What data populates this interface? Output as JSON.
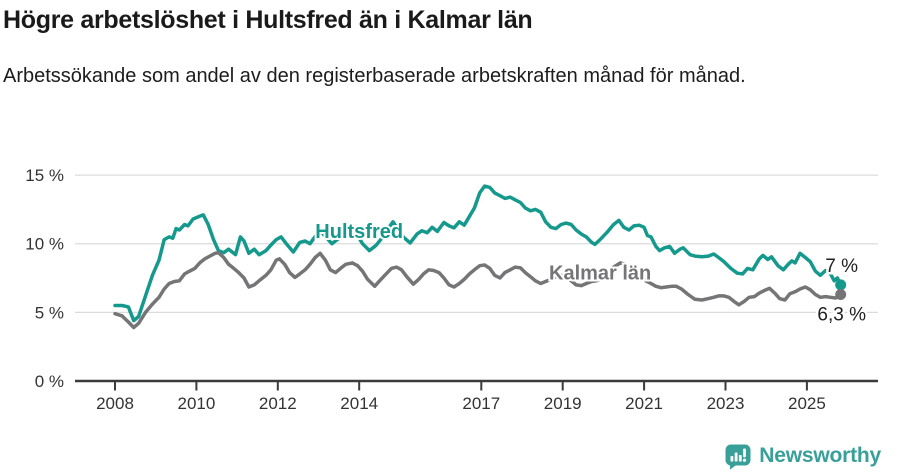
{
  "header": {
    "title": "Högre arbetslöshet i Hultsfred än i Kalmar län",
    "subtitle": "Arbetssökande som andel av den registerbaserade arbetskraften månad för månad."
  },
  "chart_data": {
    "type": "line",
    "unit": "%",
    "grid": "horizontal",
    "x_axis": {
      "range": [
        2008,
        2026.2
      ],
      "ticks": [
        {
          "label": "2008",
          "value": 2008
        },
        {
          "label": "2010",
          "value": 2010
        },
        {
          "label": "2012",
          "value": 2012
        },
        {
          "label": "2014",
          "value": 2014
        },
        {
          "label": "2017",
          "value": 2017
        },
        {
          "label": "2019",
          "value": 2019
        },
        {
          "label": "2021",
          "value": 2021
        },
        {
          "label": "2023",
          "value": 2023
        },
        {
          "label": "2025",
          "value": 2025
        }
      ]
    },
    "y_axis": {
      "range": [
        0,
        15.5
      ],
      "ticks": [
        {
          "label": "0 %",
          "value": 0
        },
        {
          "label": "5 %",
          "value": 5
        },
        {
          "label": "10 %",
          "value": 10
        },
        {
          "label": "15 %",
          "value": 15
        }
      ]
    },
    "series": [
      {
        "name": "Hultsfred",
        "color": "#14998c",
        "end_label": "7 %",
        "end_label_position": "above",
        "label_pos": [
          2014.0,
          10.92
        ],
        "points": [
          [
            2008.0,
            5.5
          ],
          [
            2008.17,
            5.5
          ],
          [
            2008.33,
            5.4
          ],
          [
            2008.46,
            4.4
          ],
          [
            2008.58,
            4.7
          ],
          [
            2008.75,
            6.2
          ],
          [
            2008.92,
            7.7
          ],
          [
            2009.08,
            8.8
          ],
          [
            2009.21,
            10.3
          ],
          [
            2009.33,
            10.5
          ],
          [
            2009.42,
            10.4
          ],
          [
            2009.5,
            11.1
          ],
          [
            2009.58,
            11.0
          ],
          [
            2009.71,
            11.4
          ],
          [
            2009.79,
            11.3
          ],
          [
            2009.92,
            11.8
          ],
          [
            2010.08,
            12.0
          ],
          [
            2010.17,
            12.1
          ],
          [
            2010.29,
            11.4
          ],
          [
            2010.42,
            10.3
          ],
          [
            2010.54,
            9.5
          ],
          [
            2010.67,
            9.35
          ],
          [
            2010.79,
            9.6
          ],
          [
            2010.88,
            9.4
          ],
          [
            2010.96,
            9.2
          ],
          [
            2011.08,
            10.5
          ],
          [
            2011.17,
            10.2
          ],
          [
            2011.29,
            9.3
          ],
          [
            2011.42,
            9.6
          ],
          [
            2011.54,
            9.2
          ],
          [
            2011.71,
            9.5
          ],
          [
            2011.83,
            9.9
          ],
          [
            2011.96,
            10.3
          ],
          [
            2012.08,
            10.5
          ],
          [
            2012.21,
            10.0
          ],
          [
            2012.38,
            9.4
          ],
          [
            2012.54,
            10.1
          ],
          [
            2012.67,
            10.2
          ],
          [
            2012.79,
            10.0
          ],
          [
            2012.96,
            10.7
          ],
          [
            2013.08,
            10.8
          ],
          [
            2013.21,
            10.4
          ],
          [
            2013.33,
            10.0
          ],
          [
            2013.46,
            10.3
          ],
          [
            2013.63,
            10.7
          ],
          [
            2013.75,
            11.0
          ],
          [
            2013.92,
            10.8
          ],
          [
            2014.08,
            10.0
          ],
          [
            2014.25,
            9.5
          ],
          [
            2014.42,
            9.9
          ],
          [
            2014.58,
            10.5
          ],
          [
            2014.71,
            11.1
          ],
          [
            2014.83,
            11.6
          ],
          [
            2014.96,
            11.0
          ],
          [
            2015.08,
            10.5
          ],
          [
            2015.25,
            10.05
          ],
          [
            2015.42,
            10.7
          ],
          [
            2015.54,
            10.95
          ],
          [
            2015.67,
            10.8
          ],
          [
            2015.79,
            11.2
          ],
          [
            2015.92,
            10.9
          ],
          [
            2016.08,
            11.55
          ],
          [
            2016.21,
            11.3
          ],
          [
            2016.33,
            11.15
          ],
          [
            2016.46,
            11.6
          ],
          [
            2016.58,
            11.35
          ],
          [
            2016.71,
            12.0
          ],
          [
            2016.83,
            12.6
          ],
          [
            2016.96,
            13.7
          ],
          [
            2017.08,
            14.2
          ],
          [
            2017.21,
            14.1
          ],
          [
            2017.33,
            13.7
          ],
          [
            2017.46,
            13.5
          ],
          [
            2017.58,
            13.3
          ],
          [
            2017.71,
            13.4
          ],
          [
            2017.83,
            13.2
          ],
          [
            2017.96,
            13.0
          ],
          [
            2018.08,
            12.6
          ],
          [
            2018.21,
            12.4
          ],
          [
            2018.33,
            12.5
          ],
          [
            2018.46,
            12.3
          ],
          [
            2018.58,
            11.6
          ],
          [
            2018.71,
            11.2
          ],
          [
            2018.83,
            11.1
          ],
          [
            2018.96,
            11.4
          ],
          [
            2019.08,
            11.5
          ],
          [
            2019.21,
            11.4
          ],
          [
            2019.33,
            11.0
          ],
          [
            2019.46,
            10.7
          ],
          [
            2019.58,
            10.5
          ],
          [
            2019.71,
            10.1
          ],
          [
            2019.79,
            9.95
          ],
          [
            2019.92,
            10.3
          ],
          [
            2020.08,
            10.8
          ],
          [
            2020.25,
            11.4
          ],
          [
            2020.38,
            11.7
          ],
          [
            2020.5,
            11.2
          ],
          [
            2020.63,
            11.0
          ],
          [
            2020.75,
            11.3
          ],
          [
            2020.88,
            11.35
          ],
          [
            2021.0,
            11.2
          ],
          [
            2021.08,
            10.6
          ],
          [
            2021.17,
            10.5
          ],
          [
            2021.29,
            9.8
          ],
          [
            2021.38,
            9.5
          ],
          [
            2021.5,
            9.7
          ],
          [
            2021.63,
            9.8
          ],
          [
            2021.75,
            9.3
          ],
          [
            2021.88,
            9.6
          ],
          [
            2021.96,
            9.7
          ],
          [
            2022.13,
            9.2
          ],
          [
            2022.25,
            9.1
          ],
          [
            2022.42,
            9.05
          ],
          [
            2022.58,
            9.1
          ],
          [
            2022.71,
            9.25
          ],
          [
            2022.83,
            9.0
          ],
          [
            2022.96,
            8.7
          ],
          [
            2023.13,
            8.2
          ],
          [
            2023.29,
            7.85
          ],
          [
            2023.42,
            7.8
          ],
          [
            2023.54,
            8.2
          ],
          [
            2023.67,
            8.1
          ],
          [
            2023.83,
            8.9
          ],
          [
            2023.92,
            9.15
          ],
          [
            2024.04,
            8.85
          ],
          [
            2024.13,
            9.05
          ],
          [
            2024.29,
            8.4
          ],
          [
            2024.42,
            8.1
          ],
          [
            2024.54,
            8.5
          ],
          [
            2024.63,
            8.75
          ],
          [
            2024.71,
            8.6
          ],
          [
            2024.83,
            9.3
          ],
          [
            2024.96,
            9.0
          ],
          [
            2025.08,
            8.7
          ],
          [
            2025.21,
            8.0
          ],
          [
            2025.33,
            7.7
          ],
          [
            2025.46,
            8.05
          ],
          [
            2025.58,
            7.8
          ],
          [
            2025.67,
            7.3
          ],
          [
            2025.75,
            7.5
          ],
          [
            2025.83,
            7.0
          ]
        ]
      },
      {
        "name": "Kalmar län",
        "color": "#757578",
        "end_label": "6,3 %",
        "end_label_position": "below",
        "label_pos": [
          2019.92,
          7.9
        ],
        "points": [
          [
            2008.0,
            4.9
          ],
          [
            2008.17,
            4.75
          ],
          [
            2008.33,
            4.3
          ],
          [
            2008.46,
            3.9
          ],
          [
            2008.58,
            4.2
          ],
          [
            2008.75,
            5.0
          ],
          [
            2008.92,
            5.6
          ],
          [
            2009.08,
            6.1
          ],
          [
            2009.21,
            6.7
          ],
          [
            2009.33,
            7.1
          ],
          [
            2009.46,
            7.25
          ],
          [
            2009.58,
            7.3
          ],
          [
            2009.71,
            7.8
          ],
          [
            2009.83,
            8.0
          ],
          [
            2009.96,
            8.2
          ],
          [
            2010.08,
            8.6
          ],
          [
            2010.21,
            8.9
          ],
          [
            2010.33,
            9.1
          ],
          [
            2010.46,
            9.3
          ],
          [
            2010.54,
            9.35
          ],
          [
            2010.67,
            9.0
          ],
          [
            2010.79,
            8.5
          ],
          [
            2010.92,
            8.2
          ],
          [
            2011.04,
            7.9
          ],
          [
            2011.17,
            7.5
          ],
          [
            2011.29,
            6.85
          ],
          [
            2011.42,
            7.0
          ],
          [
            2011.54,
            7.3
          ],
          [
            2011.71,
            7.7
          ],
          [
            2011.83,
            8.1
          ],
          [
            2011.96,
            8.8
          ],
          [
            2012.04,
            8.9
          ],
          [
            2012.17,
            8.5
          ],
          [
            2012.29,
            7.9
          ],
          [
            2012.42,
            7.55
          ],
          [
            2012.54,
            7.8
          ],
          [
            2012.67,
            8.1
          ],
          [
            2012.79,
            8.5
          ],
          [
            2012.92,
            9.0
          ],
          [
            2013.04,
            9.3
          ],
          [
            2013.17,
            8.8
          ],
          [
            2013.29,
            8.1
          ],
          [
            2013.42,
            7.9
          ],
          [
            2013.54,
            8.2
          ],
          [
            2013.67,
            8.5
          ],
          [
            2013.83,
            8.6
          ],
          [
            2013.96,
            8.4
          ],
          [
            2014.08,
            8.0
          ],
          [
            2014.21,
            7.4
          ],
          [
            2014.38,
            6.9
          ],
          [
            2014.5,
            7.3
          ],
          [
            2014.63,
            7.7
          ],
          [
            2014.79,
            8.2
          ],
          [
            2014.92,
            8.3
          ],
          [
            2015.04,
            8.1
          ],
          [
            2015.17,
            7.6
          ],
          [
            2015.33,
            7.05
          ],
          [
            2015.46,
            7.4
          ],
          [
            2015.58,
            7.8
          ],
          [
            2015.71,
            8.1
          ],
          [
            2015.83,
            8.05
          ],
          [
            2015.96,
            7.9
          ],
          [
            2016.08,
            7.5
          ],
          [
            2016.21,
            7.0
          ],
          [
            2016.33,
            6.85
          ],
          [
            2016.46,
            7.1
          ],
          [
            2016.58,
            7.4
          ],
          [
            2016.71,
            7.8
          ],
          [
            2016.83,
            8.1
          ],
          [
            2016.96,
            8.4
          ],
          [
            2017.08,
            8.45
          ],
          [
            2017.21,
            8.2
          ],
          [
            2017.33,
            7.7
          ],
          [
            2017.46,
            7.5
          ],
          [
            2017.58,
            7.9
          ],
          [
            2017.71,
            8.1
          ],
          [
            2017.83,
            8.3
          ],
          [
            2017.96,
            8.25
          ],
          [
            2018.08,
            7.9
          ],
          [
            2018.21,
            7.6
          ],
          [
            2018.33,
            7.3
          ],
          [
            2018.46,
            7.1
          ],
          [
            2018.58,
            7.25
          ],
          [
            2018.71,
            7.4
          ],
          [
            2018.83,
            7.6
          ],
          [
            2018.96,
            7.7
          ],
          [
            2019.08,
            7.6
          ],
          [
            2019.21,
            7.3
          ],
          [
            2019.33,
            7.0
          ],
          [
            2019.46,
            6.95
          ],
          [
            2019.58,
            7.1
          ],
          [
            2019.71,
            7.25
          ],
          [
            2019.83,
            7.3
          ],
          [
            2019.96,
            7.5
          ],
          [
            2020.08,
            7.8
          ],
          [
            2020.25,
            8.3
          ],
          [
            2020.42,
            8.6
          ],
          [
            2020.54,
            8.5
          ],
          [
            2020.67,
            8.4
          ],
          [
            2020.79,
            8.2
          ],
          [
            2020.92,
            7.8
          ],
          [
            2021.04,
            7.3
          ],
          [
            2021.17,
            7.1
          ],
          [
            2021.29,
            6.9
          ],
          [
            2021.42,
            6.8
          ],
          [
            2021.54,
            6.85
          ],
          [
            2021.67,
            6.9
          ],
          [
            2021.79,
            6.9
          ],
          [
            2021.92,
            6.7
          ],
          [
            2022.08,
            6.3
          ],
          [
            2022.25,
            5.95
          ],
          [
            2022.42,
            5.9
          ],
          [
            2022.58,
            6.0
          ],
          [
            2022.71,
            6.1
          ],
          [
            2022.83,
            6.2
          ],
          [
            2022.96,
            6.2
          ],
          [
            2023.08,
            6.1
          ],
          [
            2023.21,
            5.8
          ],
          [
            2023.33,
            5.55
          ],
          [
            2023.46,
            5.8
          ],
          [
            2023.58,
            6.1
          ],
          [
            2023.71,
            6.15
          ],
          [
            2023.83,
            6.4
          ],
          [
            2023.96,
            6.6
          ],
          [
            2024.08,
            6.75
          ],
          [
            2024.21,
            6.4
          ],
          [
            2024.33,
            6.0
          ],
          [
            2024.46,
            5.9
          ],
          [
            2024.58,
            6.35
          ],
          [
            2024.71,
            6.5
          ],
          [
            2024.83,
            6.7
          ],
          [
            2024.96,
            6.85
          ],
          [
            2025.08,
            6.65
          ],
          [
            2025.21,
            6.3
          ],
          [
            2025.33,
            6.1
          ],
          [
            2025.46,
            6.15
          ],
          [
            2025.58,
            6.1
          ],
          [
            2025.71,
            6.05
          ],
          [
            2025.83,
            6.3
          ]
        ]
      }
    ]
  },
  "branding": {
    "logo_text": "Newsworthy",
    "logo_color": "#38a099"
  }
}
